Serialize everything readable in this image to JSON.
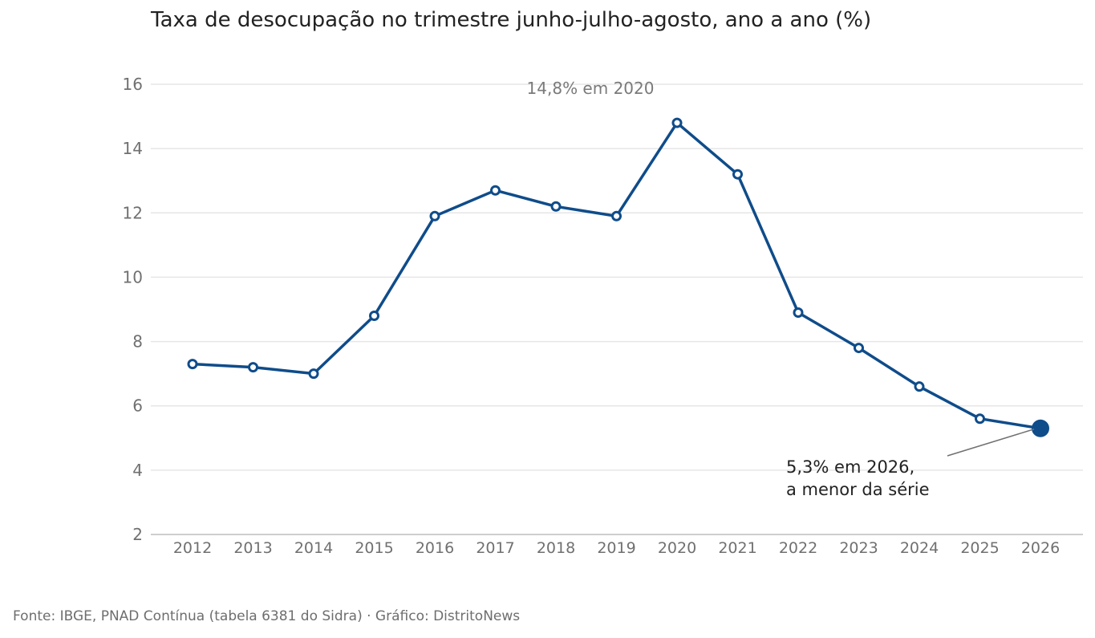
{
  "chart_data": {
    "type": "line",
    "title": "Taxa de desocupação no trimestre junho-julho-agosto, ano a ano (%)",
    "xlabel": "",
    "ylabel": "",
    "categories": [
      "2012",
      "2013",
      "2014",
      "2015",
      "2016",
      "2017",
      "2018",
      "2019",
      "2020",
      "2021",
      "2022",
      "2023",
      "2024",
      "2025",
      "2026"
    ],
    "series": [
      {
        "values": [
          7.3,
          7.2,
          7.0,
          8.8,
          11.9,
          12.7,
          12.2,
          11.9,
          14.8,
          13.2,
          8.9,
          7.8,
          6.6,
          5.6,
          5.3
        ]
      }
    ],
    "ylim": [
      2,
      16
    ],
    "yticks": [
      2,
      4,
      6,
      8,
      10,
      12,
      14,
      16
    ],
    "grid": "horizontal",
    "colors": {
      "line": "#0f4c8a",
      "grid": "#e6e6e6",
      "axis": "#bdbdbd"
    },
    "annotations": [
      {
        "text": "14,8% em 2020",
        "category": "2020",
        "value": 14.8
      },
      {
        "lines": [
          "5,3% em 2026,",
          "a menor da série"
        ],
        "category": "2026",
        "value": 5.3
      }
    ]
  },
  "footer": {
    "source": "Fonte: IBGE, PNAD Contínua (tabela 6381 do Sidra) · Gráfico: DistritoNews"
  }
}
